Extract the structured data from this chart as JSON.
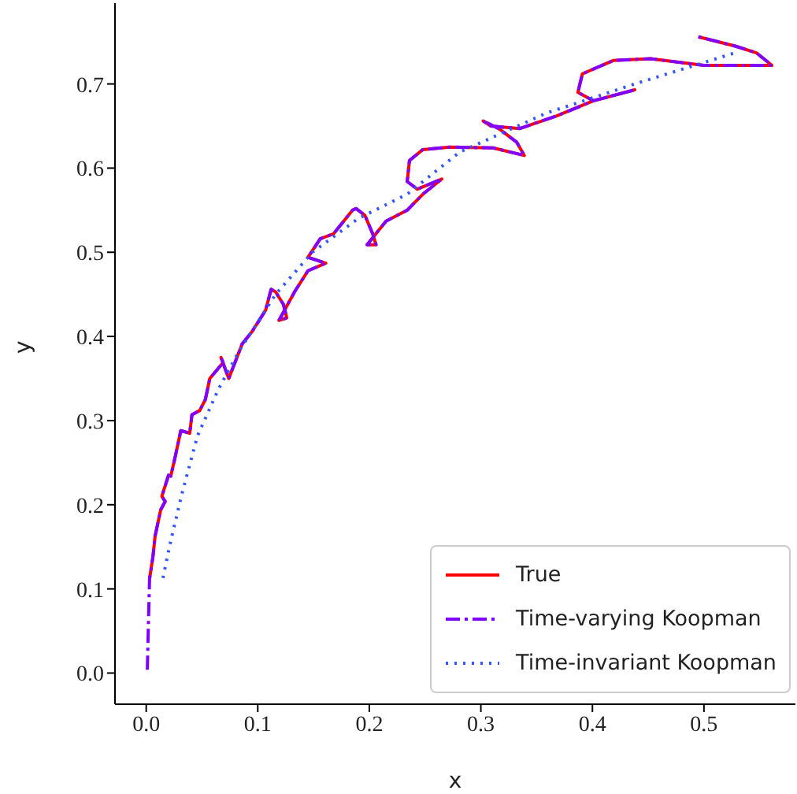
{
  "chart_data": {
    "type": "line",
    "xlabel": "x",
    "ylabel": "y",
    "xlim": [
      -0.028,
      0.582
    ],
    "ylim": [
      -0.037,
      0.796
    ],
    "xticks": [
      {
        "value": 0,
        "label": "0.0"
      },
      0.1,
      0.2,
      0.3,
      0.4,
      0.5
    ],
    "yticks": [
      {
        "value": 0,
        "label": "0.0"
      },
      0.1,
      0.2,
      0.3,
      0.4,
      0.5,
      0.6,
      0.7
    ],
    "grid": false,
    "legend": "bottom right",
    "marker": "none",
    "series": [
      {
        "name": "True",
        "color": "#ff0000",
        "line_style": "solid",
        "x": [
          0.003,
          0.006,
          0.008,
          0.013,
          0.017,
          0.014,
          0.02,
          0.022,
          0.026,
          0.031,
          0.039,
          0.041,
          0.048,
          0.053,
          0.057,
          0.069,
          0.067,
          0.074,
          0.086,
          0.095,
          0.107,
          0.112,
          0.116,
          0.123,
          0.126,
          0.119,
          0.133,
          0.145,
          0.161,
          0.145,
          0.156,
          0.168,
          0.185,
          0.188,
          0.196,
          0.203,
          0.206,
          0.198,
          0.215,
          0.234,
          0.248,
          0.265,
          0.243,
          0.234,
          0.236,
          0.248,
          0.272,
          0.311,
          0.339,
          0.332,
          0.316,
          0.302,
          0.309,
          0.335,
          0.368,
          0.401,
          0.438,
          0.401,
          0.387,
          0.391,
          0.419,
          0.452,
          0.5,
          0.561,
          0.547,
          0.528,
          0.495
        ],
        "values": [
          0.112,
          0.138,
          0.163,
          0.194,
          0.204,
          0.21,
          0.235,
          0.234,
          0.257,
          0.288,
          0.285,
          0.307,
          0.312,
          0.325,
          0.35,
          0.369,
          0.375,
          0.35,
          0.391,
          0.406,
          0.431,
          0.456,
          0.453,
          0.438,
          0.422,
          0.419,
          0.453,
          0.478,
          0.487,
          0.494,
          0.516,
          0.522,
          0.55,
          0.552,
          0.544,
          0.522,
          0.509,
          0.509,
          0.537,
          0.55,
          0.569,
          0.587,
          0.575,
          0.584,
          0.609,
          0.622,
          0.625,
          0.624,
          0.615,
          0.631,
          0.647,
          0.656,
          0.65,
          0.647,
          0.662,
          0.68,
          0.693,
          0.68,
          0.69,
          0.712,
          0.728,
          0.73,
          0.722,
          0.722,
          0.737,
          0.745,
          0.756
        ]
      },
      {
        "name": "Time-varying Koopman",
        "color": "#7f00ff",
        "line_style": "dashed",
        "x": [
          0.001,
          0.002,
          0.003,
          0.006,
          0.008,
          0.013,
          0.017,
          0.014,
          0.02,
          0.022,
          0.026,
          0.031,
          0.039,
          0.041,
          0.048,
          0.053,
          0.057,
          0.069,
          0.067,
          0.074,
          0.086,
          0.095,
          0.107,
          0.112,
          0.116,
          0.123,
          0.126,
          0.119,
          0.133,
          0.145,
          0.161,
          0.145,
          0.156,
          0.168,
          0.185,
          0.188,
          0.196,
          0.203,
          0.206,
          0.198,
          0.215,
          0.234,
          0.248,
          0.265,
          0.243,
          0.234,
          0.236,
          0.248,
          0.272,
          0.311,
          0.339,
          0.332,
          0.316,
          0.302,
          0.309,
          0.335,
          0.368,
          0.401,
          0.438,
          0.401,
          0.387,
          0.391,
          0.419,
          0.452,
          0.5,
          0.561,
          0.547,
          0.528,
          0.495
        ],
        "values": [
          0.004,
          0.06,
          0.112,
          0.138,
          0.163,
          0.194,
          0.204,
          0.21,
          0.235,
          0.234,
          0.257,
          0.288,
          0.285,
          0.307,
          0.312,
          0.325,
          0.35,
          0.369,
          0.375,
          0.35,
          0.391,
          0.406,
          0.431,
          0.456,
          0.453,
          0.438,
          0.422,
          0.419,
          0.453,
          0.478,
          0.487,
          0.494,
          0.516,
          0.522,
          0.55,
          0.552,
          0.544,
          0.522,
          0.509,
          0.509,
          0.537,
          0.55,
          0.569,
          0.587,
          0.575,
          0.584,
          0.609,
          0.622,
          0.625,
          0.624,
          0.615,
          0.631,
          0.647,
          0.656,
          0.65,
          0.647,
          0.662,
          0.68,
          0.693,
          0.68,
          0.69,
          0.712,
          0.728,
          0.73,
          0.722,
          0.722,
          0.737,
          0.745,
          0.756
        ]
      },
      {
        "name": "Time-invariant Koopman",
        "color": "#3355ff",
        "line_style": "dotted",
        "x": [
          0.015,
          0.022,
          0.032,
          0.046,
          0.065,
          0.083,
          0.116,
          0.149,
          0.19,
          0.234,
          0.281,
          0.358,
          0.438,
          0.528
        ],
        "values": [
          0.113,
          0.157,
          0.213,
          0.282,
          0.338,
          0.382,
          0.45,
          0.5,
          0.54,
          0.569,
          0.619,
          0.665,
          0.7,
          0.737
        ]
      }
    ]
  }
}
